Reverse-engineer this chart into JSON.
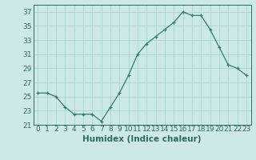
{
  "xlabel": "Humidex (Indice chaleur)",
  "x": [
    0,
    1,
    2,
    3,
    4,
    5,
    6,
    7,
    8,
    9,
    10,
    11,
    12,
    13,
    14,
    15,
    16,
    17,
    18,
    19,
    20,
    21,
    22,
    23
  ],
  "y": [
    25.5,
    25.5,
    25.0,
    23.5,
    22.5,
    22.5,
    22.5,
    21.5,
    23.5,
    25.5,
    28.0,
    31.0,
    32.5,
    33.5,
    34.5,
    35.5,
    37.0,
    36.5,
    36.5,
    34.5,
    32.0,
    29.5,
    29.0,
    28.0
  ],
  "line_color": "#2e7d6e",
  "marker": "+",
  "bg_color": "#cce9e5",
  "grid_color": "#aad4cf",
  "tick_color": "#2e6b60",
  "ylim": [
    21,
    38
  ],
  "yticks": [
    21,
    23,
    25,
    27,
    29,
    31,
    33,
    35,
    37
  ],
  "xticks": [
    0,
    1,
    2,
    3,
    4,
    5,
    6,
    7,
    8,
    9,
    10,
    11,
    12,
    13,
    14,
    15,
    16,
    17,
    18,
    19,
    20,
    21,
    22,
    23
  ],
  "xlabel_fontsize": 7.5,
  "tick_fontsize": 6.5
}
